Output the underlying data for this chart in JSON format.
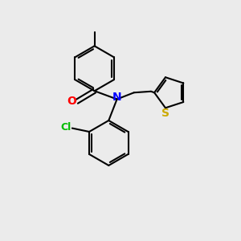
{
  "background_color": "#ebebeb",
  "bond_color": "#000000",
  "atom_colors": {
    "O": "#ff0000",
    "N": "#0000ff",
    "Cl": "#00bb00",
    "S": "#ccaa00"
  },
  "figsize": [
    3.0,
    3.0
  ],
  "dpi": 100
}
